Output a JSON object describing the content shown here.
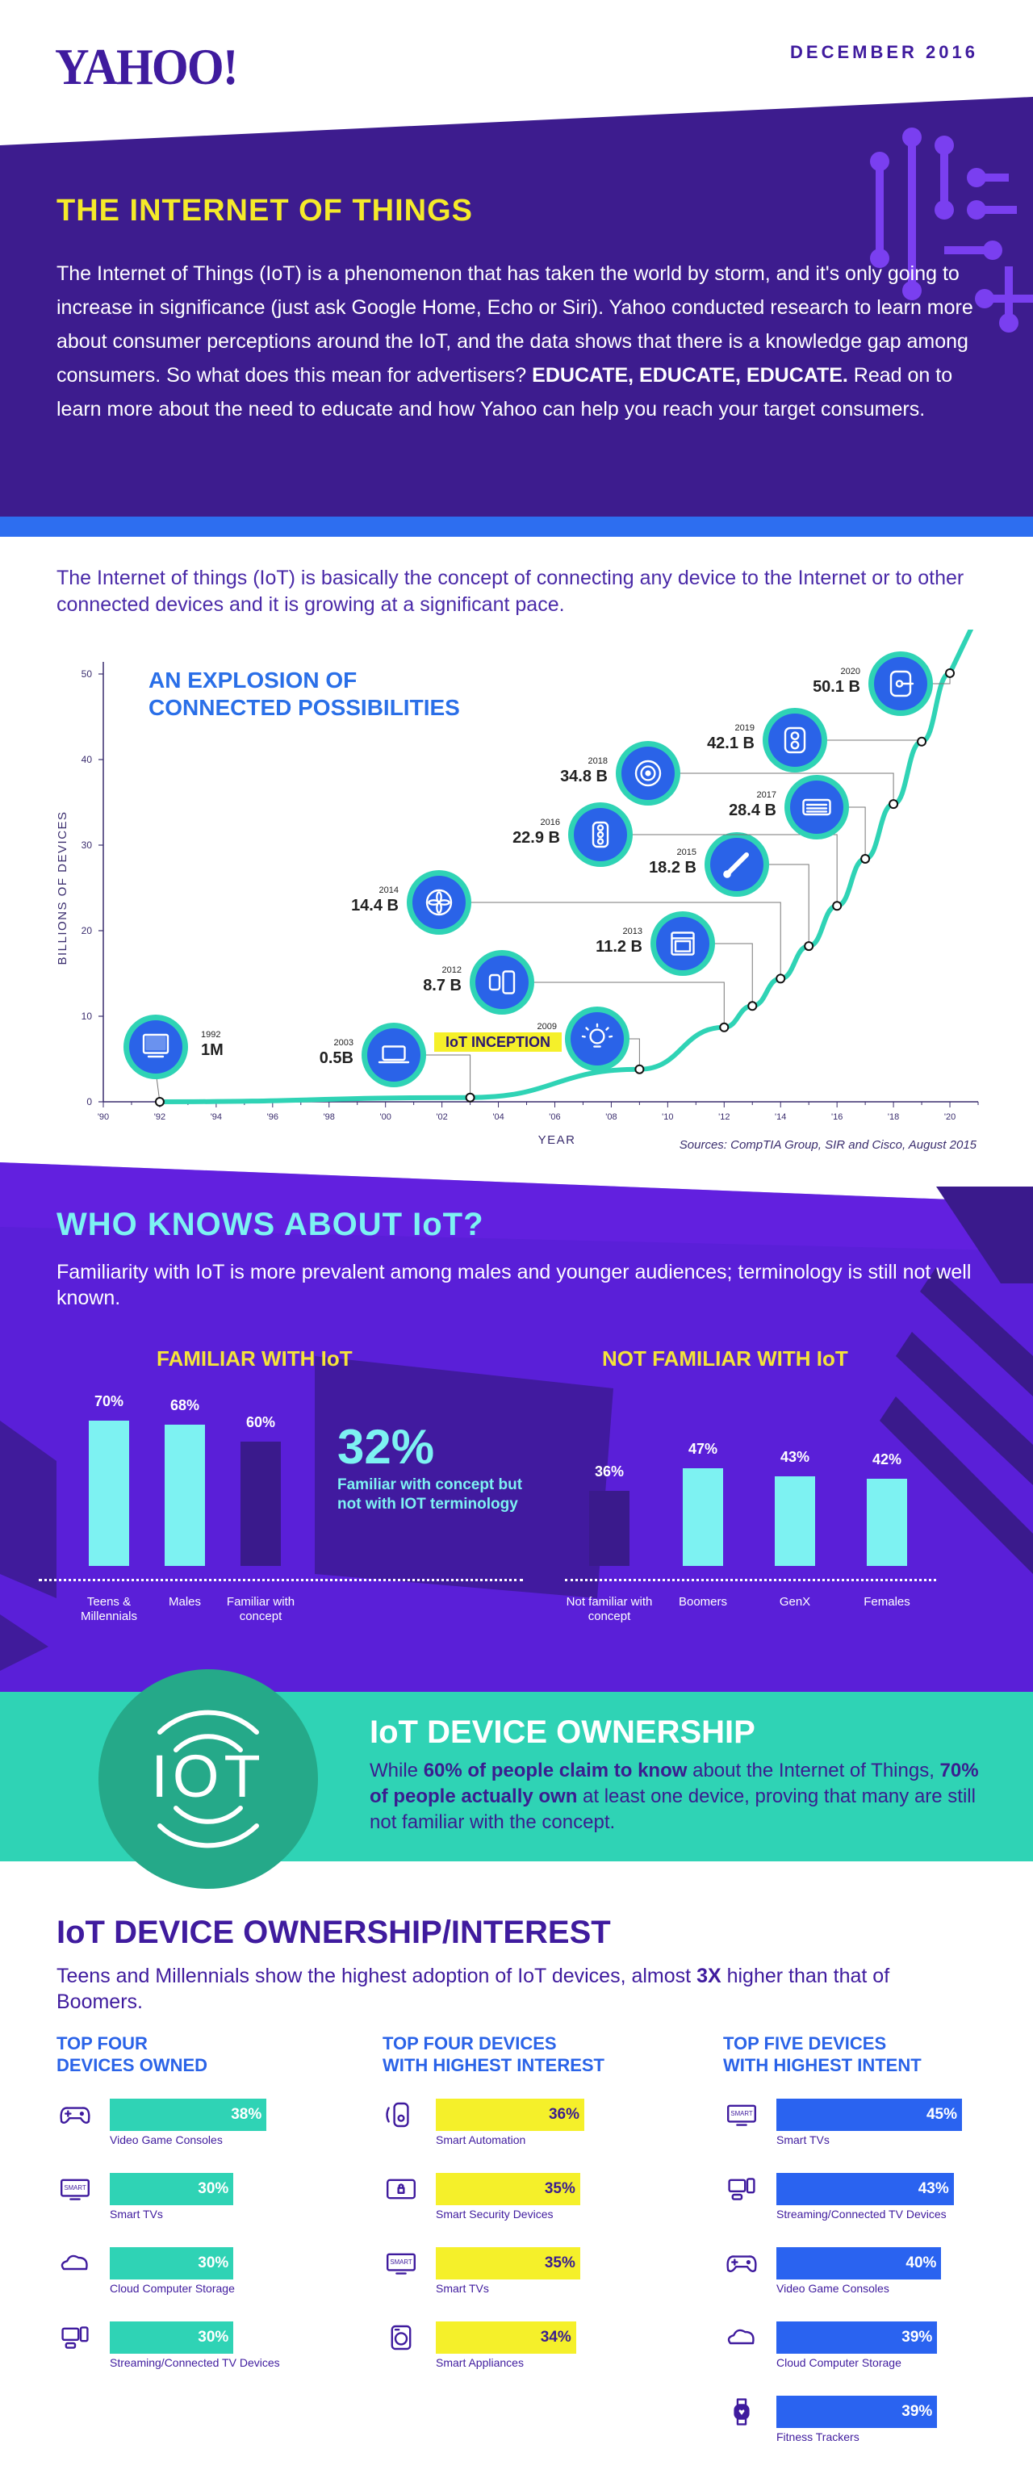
{
  "header": {
    "logo": "YAHOO!",
    "date": "DECEMBER 2016"
  },
  "intro": {
    "title": "THE INTERNET OF THINGS",
    "text_start": "The Internet of Things (IoT) is a phenomenon that has taken the world by storm, and it's only going to increase in significance (just ask Google Home, Echo or Siri). Yahoo conducted research to learn more about consumer perceptions around the IoT, and the data shows that there is a knowledge gap among consumers. So what does this mean for advertisers? ",
    "text_bold": "EDUCATE, EDUCATE, EDUCATE.",
    "text_end": " Read on to learn more about the need to educate and how Yahoo can help you reach your target consumers."
  },
  "explosion": {
    "lede": "The Internet of things (IoT) is basically the concept of connecting any device to the Internet or to other connected devices and it is growing at a significant pace.",
    "title_line1": "AN EXPLOSION OF",
    "title_line2": "CONNECTED POSSIBILITIES",
    "source": "Sources: CompTIA Group, SIR and Cisco, August 2015"
  },
  "chart_data": {
    "type": "line",
    "xlabel": "YEAR",
    "ylabel": "BILLIONS OF DEVICES",
    "xlim": [
      1990,
      2021
    ],
    "ylim": [
      0,
      50
    ],
    "x_ticks": [
      "'90",
      "'92",
      "'94",
      "'96",
      "'98",
      "'00",
      "'02",
      "'04",
      "'06",
      "'08",
      "'10",
      "'12",
      "'14",
      "'16",
      "'18",
      "'20"
    ],
    "x_tick_values": [
      1990,
      1992,
      1994,
      1996,
      1998,
      2000,
      2002,
      2004,
      2006,
      2008,
      2010,
      2012,
      2014,
      2016,
      2018,
      2020
    ],
    "y_ticks": [
      "0",
      "10",
      "20",
      "30",
      "40",
      "50"
    ],
    "y_tick_values": [
      0,
      10,
      20,
      30,
      40,
      50
    ],
    "annotation": "IoT INCEPTION",
    "points": [
      {
        "year": "1992",
        "x": 1992,
        "y": 0.001,
        "label": "1M",
        "icon": "computer-icon"
      },
      {
        "year": "2003",
        "x": 2003,
        "y": 0.5,
        "label": "0.5B",
        "icon": "laptop-icon"
      },
      {
        "year": "2009",
        "x": 2009,
        "y": 3.8,
        "label": "",
        "icon": "lightbulb-icon"
      },
      {
        "year": "2012",
        "x": 2012,
        "y": 8.7,
        "label": "8.7 B",
        "icon": "smartwatch-icon"
      },
      {
        "year": "2013",
        "x": 2013,
        "y": 11.2,
        "label": "11.2 B",
        "icon": "oven-icon"
      },
      {
        "year": "2014",
        "x": 2014,
        "y": 14.4,
        "label": "14.4 B",
        "icon": "fan-icon"
      },
      {
        "year": "2015",
        "x": 2015,
        "y": 18.2,
        "label": "18.2 B",
        "icon": "thermometer-icon"
      },
      {
        "year": "2016",
        "x": 2016,
        "y": 22.9,
        "label": "22.9 B",
        "icon": "traffic-light-icon"
      },
      {
        "year": "2017",
        "x": 2017,
        "y": 28.4,
        "label": "28.4 B",
        "icon": "air-conditioner-icon"
      },
      {
        "year": "2018",
        "x": 2018,
        "y": 34.8,
        "label": "34.8 B",
        "icon": "smoke-detector-icon"
      },
      {
        "year": "2019",
        "x": 2019,
        "y": 42.1,
        "label": "42.1 B",
        "icon": "power-outlet-icon"
      },
      {
        "year": "2020",
        "x": 2020,
        "y": 50.1,
        "label": "50.1 B",
        "icon": "smart-lock-icon"
      }
    ]
  },
  "who": {
    "title": "WHO KNOWS ABOUT IoT?",
    "sub": "Familiarity with IoT is more prevalent among males and younger audiences; terminology is still not well known.",
    "familiar_head": "FAMILIAR WITH IoT",
    "not_familiar_head": "NOT FAMILIAR WITH IoT",
    "big_pct": "32%",
    "big_note": "Familiar with concept but not with IOT terminology",
    "familiar": [
      {
        "label": "Teens & Millennials",
        "value": 70,
        "display": "70%",
        "color": "#7df2f2"
      },
      {
        "label": "Males",
        "value": 68,
        "display": "68%",
        "color": "#7df2f2"
      },
      {
        "label": "Familiar with concept",
        "value": 60,
        "display": "60%",
        "color": "#3a1a8c"
      }
    ],
    "not_familiar": [
      {
        "label": "Not familiar with concept",
        "value": 36,
        "display": "36%",
        "color": "#3a1a8c"
      },
      {
        "label": "Boomers",
        "value": 47,
        "display": "47%",
        "color": "#7df2f2"
      },
      {
        "label": "GenX",
        "value": 43,
        "display": "43%",
        "color": "#7df2f2"
      },
      {
        "label": "Females",
        "value": 42,
        "display": "42%",
        "color": "#7df2f2"
      }
    ]
  },
  "ownership": {
    "logo_text": "IOT",
    "title": "IoT DEVICE OWNERSHIP",
    "t1": "While ",
    "b1": "60% of people claim to know",
    "t2": " about the Internet of Things, ",
    "b2": "70% of people actually own",
    "t3": " at least one device, proving that many are still not familiar with the concept."
  },
  "interest": {
    "title": "IoT DEVICE OWNERSHIP/INTEREST",
    "sub_start": "Teens and Millennials show the highest adoption of IoT devices, almost ",
    "sub_bold": "3X",
    "sub_end": " higher than that of Boomers.",
    "smart_tag": "SMART",
    "columns": [
      {
        "head_line1": "TOP FOUR",
        "head_line2": "DEVICES OWNED",
        "color": "#2fd3b5",
        "text_color": "#ffffff",
        "items": [
          {
            "label": "Video Game Consoles",
            "value": 38,
            "display": "38%",
            "icon": "gamepad-icon"
          },
          {
            "label": "Smart TVs",
            "value": 30,
            "display": "30%",
            "icon": "smart-tv-icon"
          },
          {
            "label": "Cloud Computer Storage",
            "value": 30,
            "display": "30%",
            "icon": "cloud-icon"
          },
          {
            "label": "Streaming/Connected TV Devices",
            "value": 30,
            "display": "30%",
            "icon": "streaming-device-icon"
          }
        ]
      },
      {
        "head_line1": "TOP FOUR DEVICES",
        "head_line2": "WITH HIGHEST INTEREST",
        "color": "#f5f02a",
        "text_color": "#3a1d8f",
        "items": [
          {
            "label": "Smart Automation",
            "value": 36,
            "display": "36%",
            "icon": "smart-automation-icon"
          },
          {
            "label": "Smart Security Devices",
            "value": 35,
            "display": "35%",
            "icon": "security-icon"
          },
          {
            "label": "Smart TVs",
            "value": 35,
            "display": "35%",
            "icon": "smart-tv-icon"
          },
          {
            "label": "Smart Appliances",
            "value": 34,
            "display": "34%",
            "icon": "appliance-icon"
          }
        ]
      },
      {
        "head_line1": "TOP FIVE DEVICES",
        "head_line2": "WITH HIGHEST INTENT",
        "color": "#2a63f0",
        "text_color": "#ffffff",
        "items": [
          {
            "label": "Smart TVs",
            "value": 45,
            "display": "45%",
            "icon": "smart-tv-icon"
          },
          {
            "label": "Streaming/Connected TV Devices",
            "value": 43,
            "display": "43%",
            "icon": "streaming-device-icon"
          },
          {
            "label": "Video Game Consoles",
            "value": 40,
            "display": "40%",
            "icon": "gamepad-icon"
          },
          {
            "label": "Cloud Computer Storage",
            "value": 39,
            "display": "39%",
            "icon": "cloud-icon"
          },
          {
            "label": "Fitness Trackers",
            "value": 39,
            "display": "39%",
            "icon": "fitness-tracker-icon"
          }
        ]
      }
    ]
  }
}
